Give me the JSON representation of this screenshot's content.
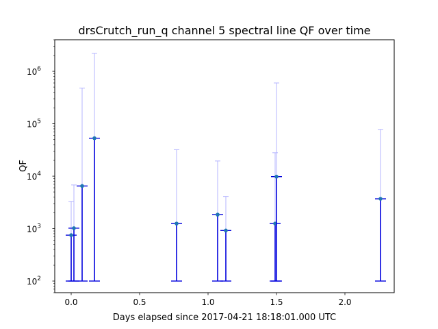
{
  "chart_data": {
    "type": "scatter",
    "title": "drsCrutch_run_q channel 5 spectral line QF over time",
    "xlabel": "Days elapsed since 2017-04-21 18:18:01.000 UTC",
    "ylabel": "QF",
    "xlim": [
      -0.12,
      2.36
    ],
    "ylim": [
      60,
      4000000
    ],
    "yscale": "log",
    "grid": false,
    "x_ticks": [
      {
        "value": 0.0,
        "label": "0.0"
      },
      {
        "value": 0.5,
        "label": "0.5"
      },
      {
        "value": 1.0,
        "label": "1.0"
      },
      {
        "value": 1.5,
        "label": "1.5"
      },
      {
        "value": 2.0,
        "label": "2.0"
      }
    ],
    "y_ticks": [
      {
        "value": 100,
        "base": "10",
        "exp": "2"
      },
      {
        "value": 1000,
        "base": "10",
        "exp": "3"
      },
      {
        "value": 10000,
        "base": "10",
        "exp": "4"
      },
      {
        "value": 100000,
        "base": "10",
        "exp": "5"
      },
      {
        "value": 1000000,
        "base": "10",
        "exp": "6"
      }
    ],
    "colors": {
      "point": "#1f77b4",
      "lower_error": "#0000dd",
      "upper_error": "#b4b4ff",
      "axes": "#000000"
    },
    "points": [
      {
        "x": 0.0,
        "y": 750,
        "y_low": 100,
        "y_high": 3300
      },
      {
        "x": 0.02,
        "y": 1020,
        "y_low": 100,
        "y_high": 6800
      },
      {
        "x": 0.08,
        "y": 6500,
        "y_low": 100,
        "y_high": 480000
      },
      {
        "x": 0.17,
        "y": 53000,
        "y_low": 100,
        "y_high": 2200000
      },
      {
        "x": 0.77,
        "y": 1250,
        "y_low": 100,
        "y_high": 32000
      },
      {
        "x": 1.07,
        "y": 1850,
        "y_low": 100,
        "y_high": 19500
      },
      {
        "x": 1.13,
        "y": 920,
        "y_low": 100,
        "y_high": 4100
      },
      {
        "x": 1.49,
        "y": 1250,
        "y_low": 100,
        "y_high": 28000
      },
      {
        "x": 1.5,
        "y": 9800,
        "y_low": 100,
        "y_high": 600000
      },
      {
        "x": 2.26,
        "y": 3700,
        "y_low": 100,
        "y_high": 78000
      }
    ]
  }
}
